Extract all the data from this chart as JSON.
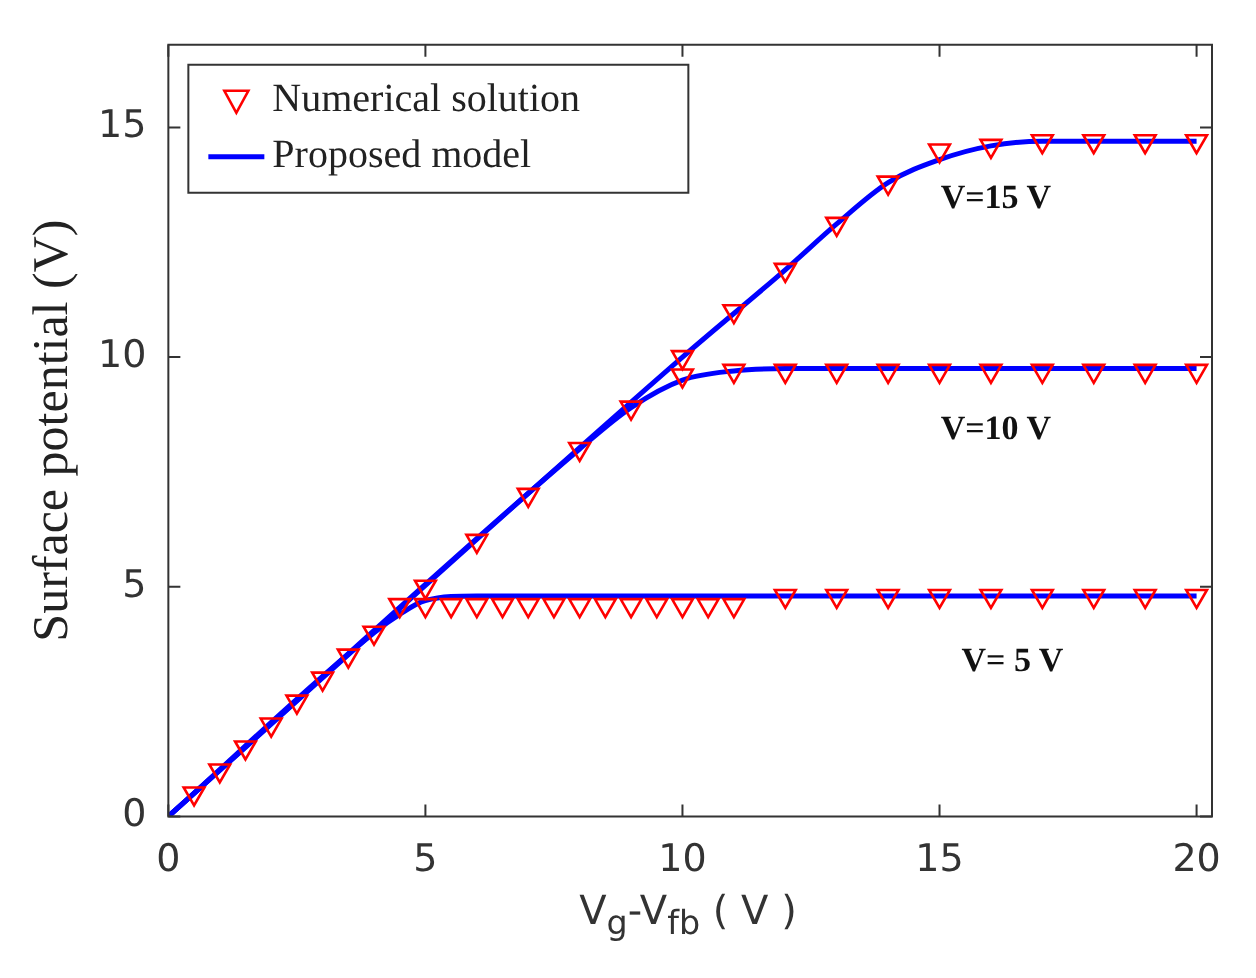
{
  "chart_data": {
    "type": "scatter",
    "xlabel": "V$_{g}$-V$_{fb}$ ( V )",
    "ylabel": "Surface potential (V)",
    "xlim": [
      0,
      20.3
    ],
    "ylim": [
      0,
      16.8
    ],
    "xticks": [
      0,
      5,
      10,
      15,
      20
    ],
    "yticks": [
      0,
      5,
      10,
      15
    ],
    "grid": false,
    "legend": "top left",
    "marker": "triangle",
    "series": [
      {
        "name": "Numerical solution",
        "type": "scatter",
        "color": "#ff0000",
        "x": [
          0.5,
          1,
          1.5,
          2,
          2.5,
          3,
          3.5,
          4,
          4.5,
          5,
          5.5,
          6,
          6.5,
          7,
          7.5,
          8,
          8.5,
          9,
          9.5,
          10,
          10.5,
          11,
          12,
          13,
          14,
          15,
          16,
          17,
          18,
          19,
          20
        ],
        "values": [
          0.5,
          1,
          1.5,
          2,
          2.5,
          3,
          3.5,
          4,
          4.6,
          4.6,
          4.6,
          4.6,
          4.6,
          4.6,
          4.6,
          4.6,
          4.6,
          4.6,
          4.6,
          4.6,
          4.6,
          4.6,
          4.8,
          4.8,
          4.8,
          4.8,
          4.8,
          4.8,
          4.8,
          4.8,
          4.8
        ]
      },
      {
        "type": "scatter",
        "color": "#ff0000",
        "x": [
          5,
          6,
          7,
          8,
          9,
          10,
          11,
          12,
          13,
          14,
          15,
          16,
          17,
          18,
          19,
          20
        ],
        "values": [
          5,
          6,
          7,
          8,
          8.9,
          9.6,
          9.7,
          9.7,
          9.7,
          9.7,
          9.7,
          9.7,
          9.7,
          9.7,
          9.7,
          9.7
        ]
      },
      {
        "type": "scatter",
        "color": "#ff0000",
        "x": [
          10,
          11,
          12,
          13,
          14,
          15,
          16,
          17,
          18,
          19,
          20
        ],
        "values": [
          10,
          11,
          11.9,
          12.9,
          13.8,
          14.5,
          14.6,
          14.7,
          14.7,
          14.7,
          14.7
        ]
      },
      {
        "name": "Proposed model",
        "type": "line",
        "color": "#0000ff",
        "marker": "none",
        "x": [
          0,
          4,
          4.5,
          5,
          6,
          20
        ],
        "values": [
          0,
          4,
          4.4,
          4.7,
          4.8,
          4.8
        ]
      },
      {
        "type": "line",
        "color": "#0000ff",
        "marker": "none",
        "x": [
          0,
          8,
          9,
          10,
          11,
          12,
          20
        ],
        "values": [
          0,
          8,
          8.9,
          9.5,
          9.7,
          9.75,
          9.75
        ]
      },
      {
        "type": "line",
        "color": "#0000ff",
        "marker": "none",
        "x": [
          0,
          10,
          12,
          13,
          14,
          15,
          16,
          17,
          20
        ],
        "values": [
          0,
          10,
          11.9,
          12.9,
          13.8,
          14.3,
          14.6,
          14.7,
          14.7
        ]
      }
    ],
    "annotations": [
      "V=15 V",
      "V=10 V",
      "V= 5 V"
    ]
  }
}
